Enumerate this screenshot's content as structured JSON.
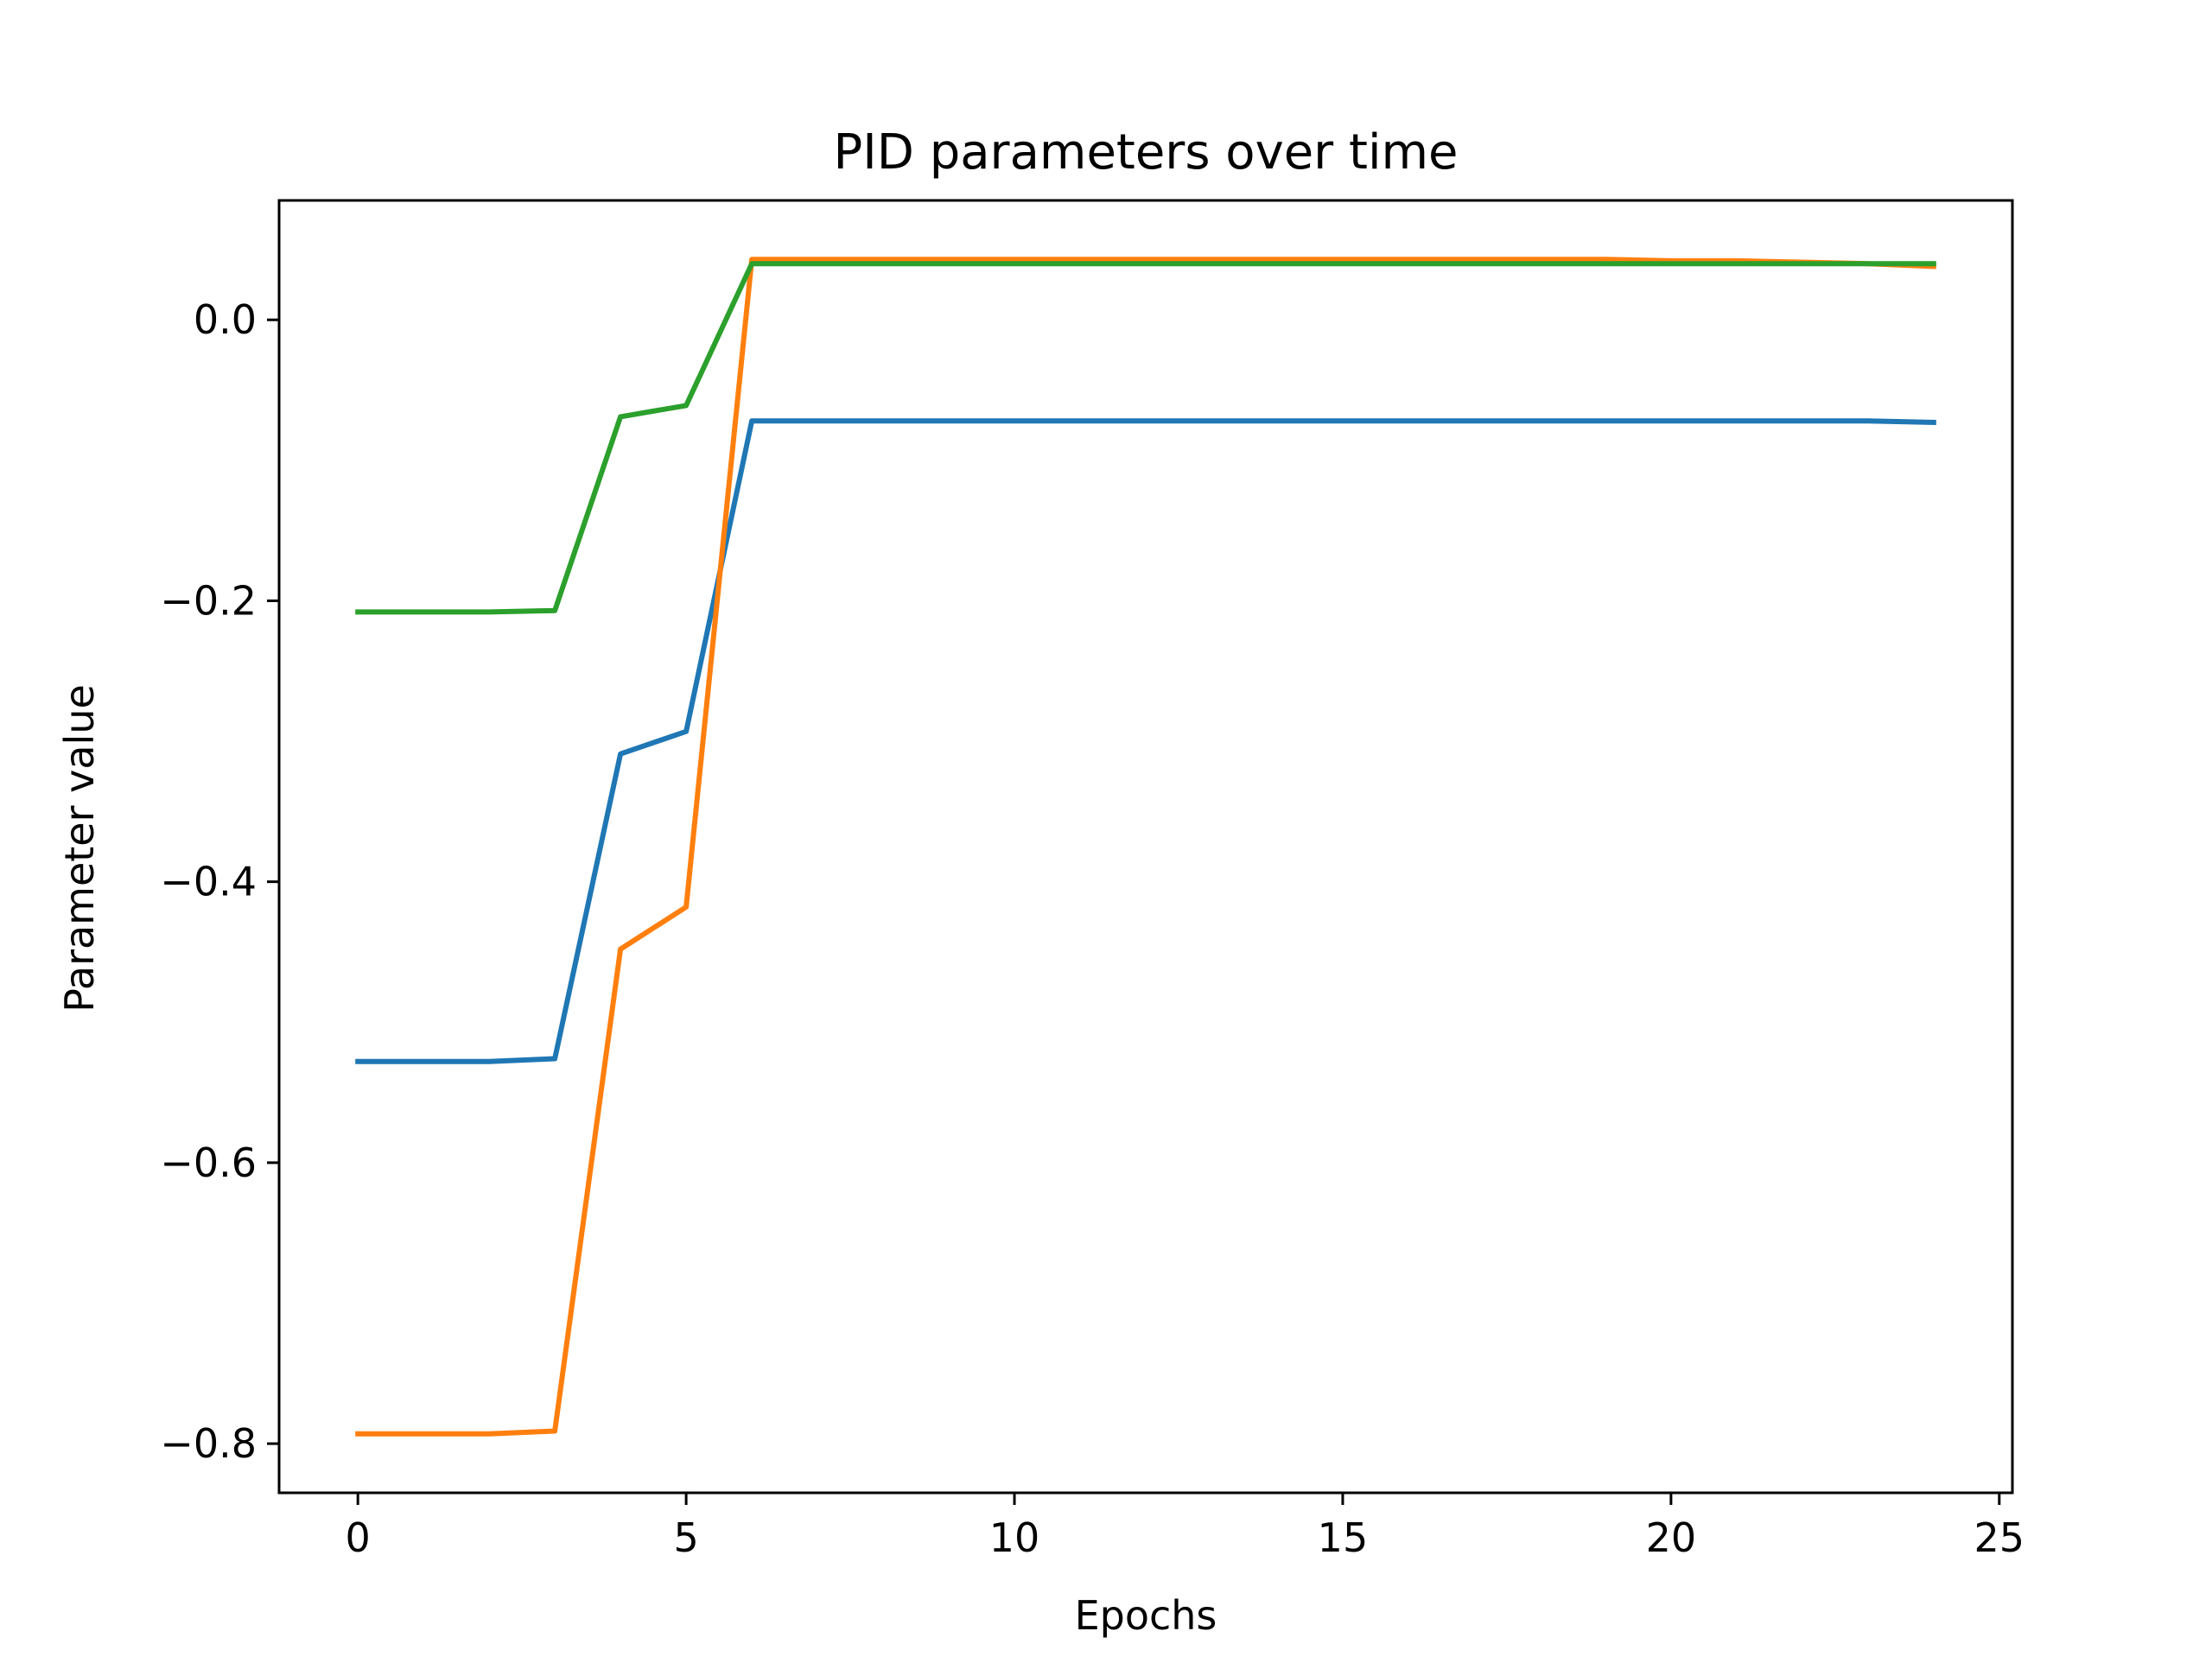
{
  "chart_data": {
    "type": "line",
    "title": "PID parameters over time",
    "xlabel": "Epochs",
    "ylabel": "Parameter value",
    "xlim": [
      -1.2,
      25.2
    ],
    "ylim": [
      -0.835,
      0.085
    ],
    "xticks": [
      0,
      5,
      10,
      15,
      20,
      25
    ],
    "xtick_labels": [
      "0",
      "5",
      "10",
      "15",
      "20",
      "25"
    ],
    "yticks": [
      0.0,
      -0.2,
      -0.4,
      -0.6,
      -0.8
    ],
    "ytick_labels": [
      "0.0",
      "−0.2",
      "−0.4",
      "−0.6",
      "−0.8"
    ],
    "grid": false,
    "legend": "none",
    "x": [
      0,
      1,
      2,
      3,
      4,
      5,
      6,
      7,
      8,
      9,
      10,
      11,
      12,
      13,
      14,
      15,
      16,
      17,
      18,
      19,
      20,
      21,
      22,
      23,
      24
    ],
    "series": [
      {
        "color": "#1f77b4",
        "values": [
          -0.528,
          -0.528,
          -0.528,
          -0.526,
          -0.309,
          -0.293,
          -0.072,
          -0.072,
          -0.072,
          -0.072,
          -0.072,
          -0.072,
          -0.072,
          -0.072,
          -0.072,
          -0.072,
          -0.072,
          -0.072,
          -0.072,
          -0.072,
          -0.072,
          -0.072,
          -0.072,
          -0.072,
          -0.073
        ]
      },
      {
        "color": "#ff7f0e",
        "values": [
          -0.793,
          -0.793,
          -0.793,
          -0.791,
          -0.448,
          -0.418,
          0.043,
          0.043,
          0.043,
          0.043,
          0.043,
          0.043,
          0.043,
          0.043,
          0.043,
          0.043,
          0.043,
          0.043,
          0.043,
          0.043,
          0.042,
          0.042,
          0.041,
          0.04,
          0.038
        ]
      },
      {
        "color": "#2ca02c",
        "values": [
          -0.208,
          -0.208,
          -0.208,
          -0.207,
          -0.069,
          -0.061,
          0.04,
          0.04,
          0.04,
          0.04,
          0.04,
          0.04,
          0.04,
          0.04,
          0.04,
          0.04,
          0.04,
          0.04,
          0.04,
          0.04,
          0.04,
          0.04,
          0.04,
          0.04,
          0.04
        ]
      }
    ]
  }
}
